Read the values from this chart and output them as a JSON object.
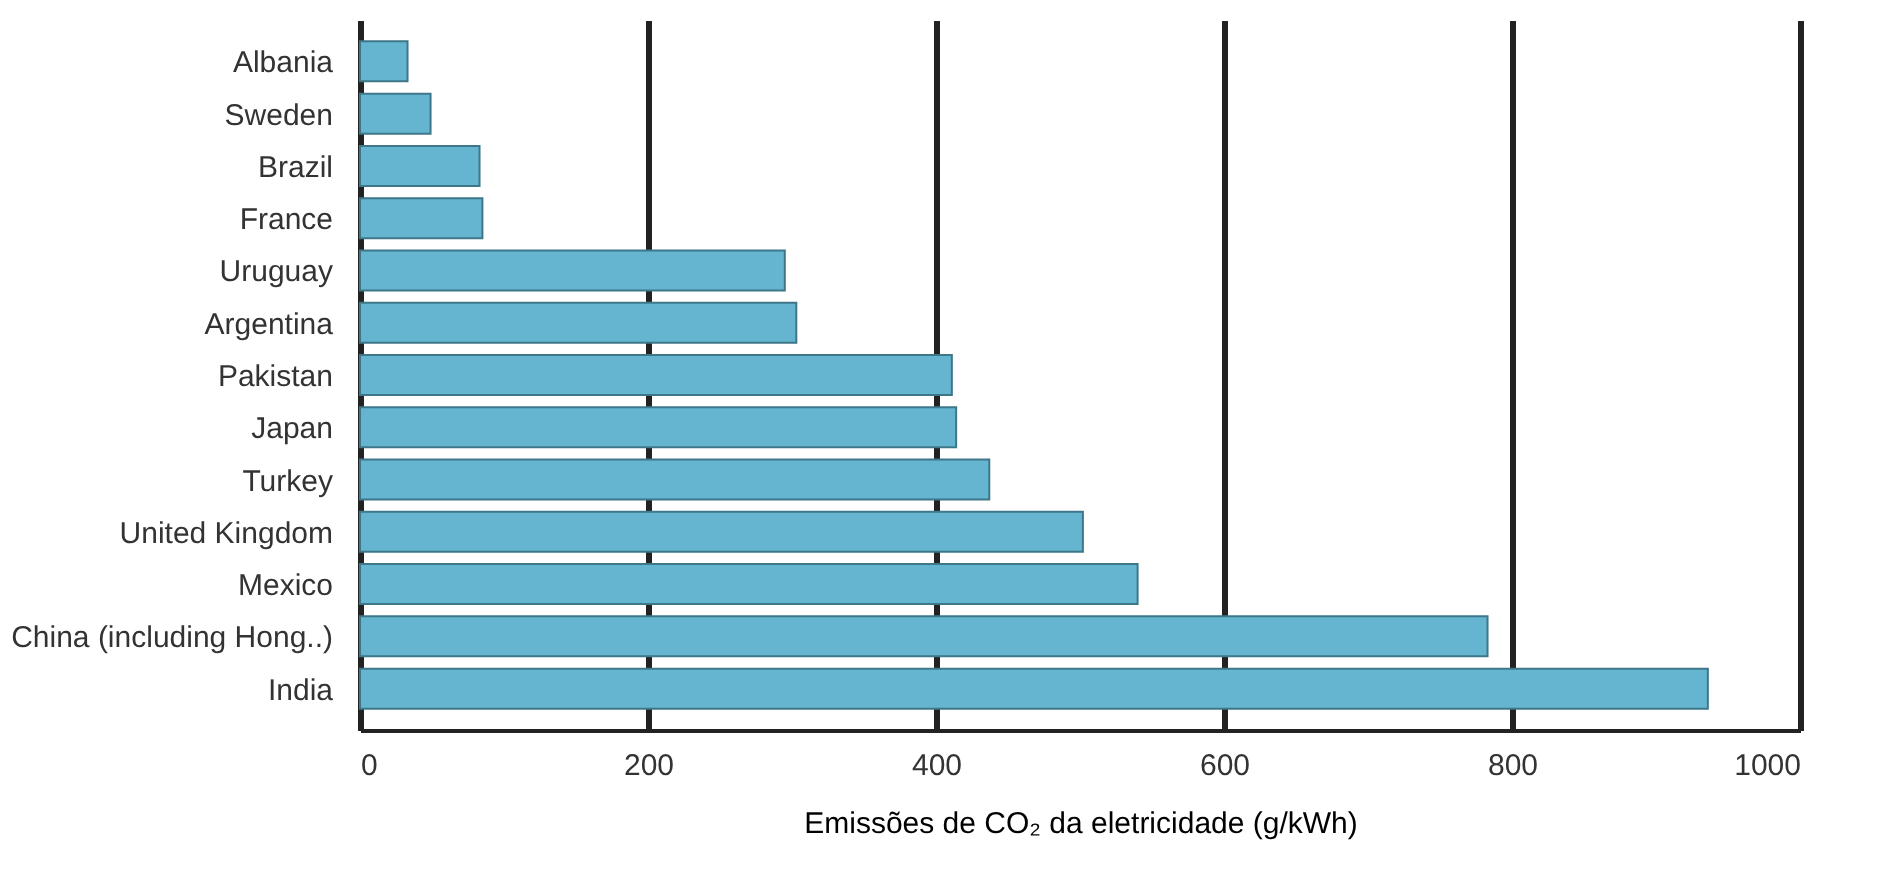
{
  "chart_data": {
    "type": "bar",
    "orientation": "horizontal",
    "xlabel": "Emissões de CO₂ da eletricidade (g/kWh)",
    "categories": [
      "Albania",
      "Sweden",
      "Brazil",
      "France",
      "Uruguay",
      "Argentina",
      "Pakistan",
      "Japan",
      "Turkey",
      "United Kingdom",
      "Mexico",
      "China (including Hong..)",
      "India"
    ],
    "values": [
      33,
      49,
      83,
      85,
      295,
      303,
      411,
      414,
      437,
      502,
      540,
      783,
      936
    ],
    "color": "#65b5d1",
    "xlim": [
      0,
      1000
    ],
    "xticks": [
      0,
      200,
      400,
      600,
      800,
      1000
    ],
    "grid": "x"
  }
}
